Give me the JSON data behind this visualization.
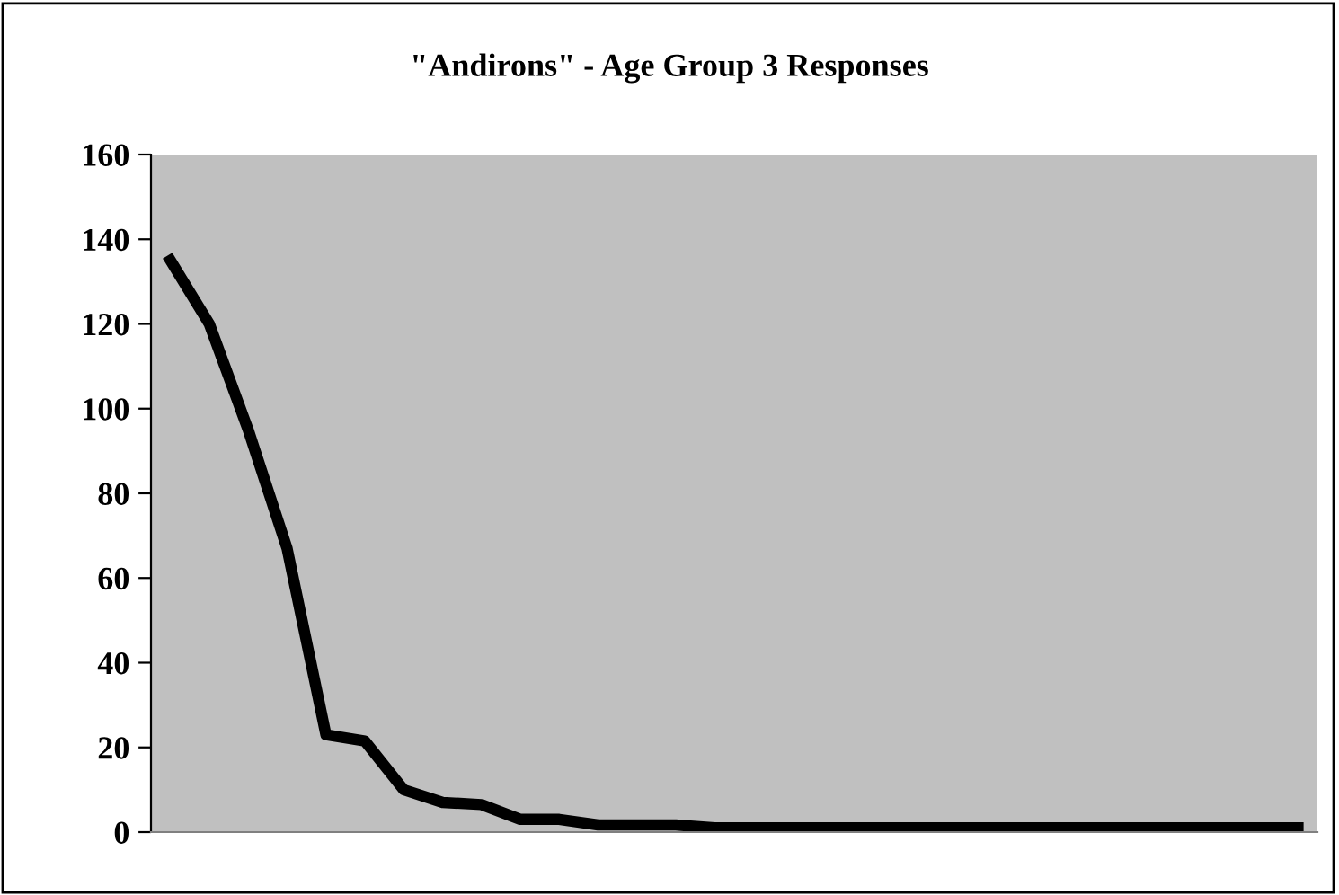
{
  "chart_data": {
    "type": "line",
    "title": "\"Andirons\" - Age Group 3 Responses",
    "categories": [
      null,
      null,
      null,
      null,
      null,
      null,
      null,
      null,
      null,
      null,
      null,
      null,
      null,
      null,
      null,
      null,
      null,
      null,
      null,
      null,
      null,
      null,
      null,
      null,
      null,
      null,
      null,
      null,
      null,
      null
    ],
    "series": [
      {
        "color": "#000000",
        "values": [
          135,
          120,
          95,
          67,
          23,
          21.5,
          10,
          7,
          6.5,
          3,
          3,
          1.7,
          1.7,
          1.7,
          1,
          1,
          1,
          1,
          1,
          1,
          1,
          1,
          1,
          1,
          1,
          1,
          1,
          1,
          1,
          1
        ]
      }
    ],
    "ylim": [
      0,
      160
    ],
    "yticks": [
      0,
      20,
      40,
      60,
      80,
      100,
      120,
      140,
      160
    ],
    "grid": false,
    "legend": false,
    "marker": "none",
    "line_style": "solid",
    "tick_labels": "y"
  }
}
